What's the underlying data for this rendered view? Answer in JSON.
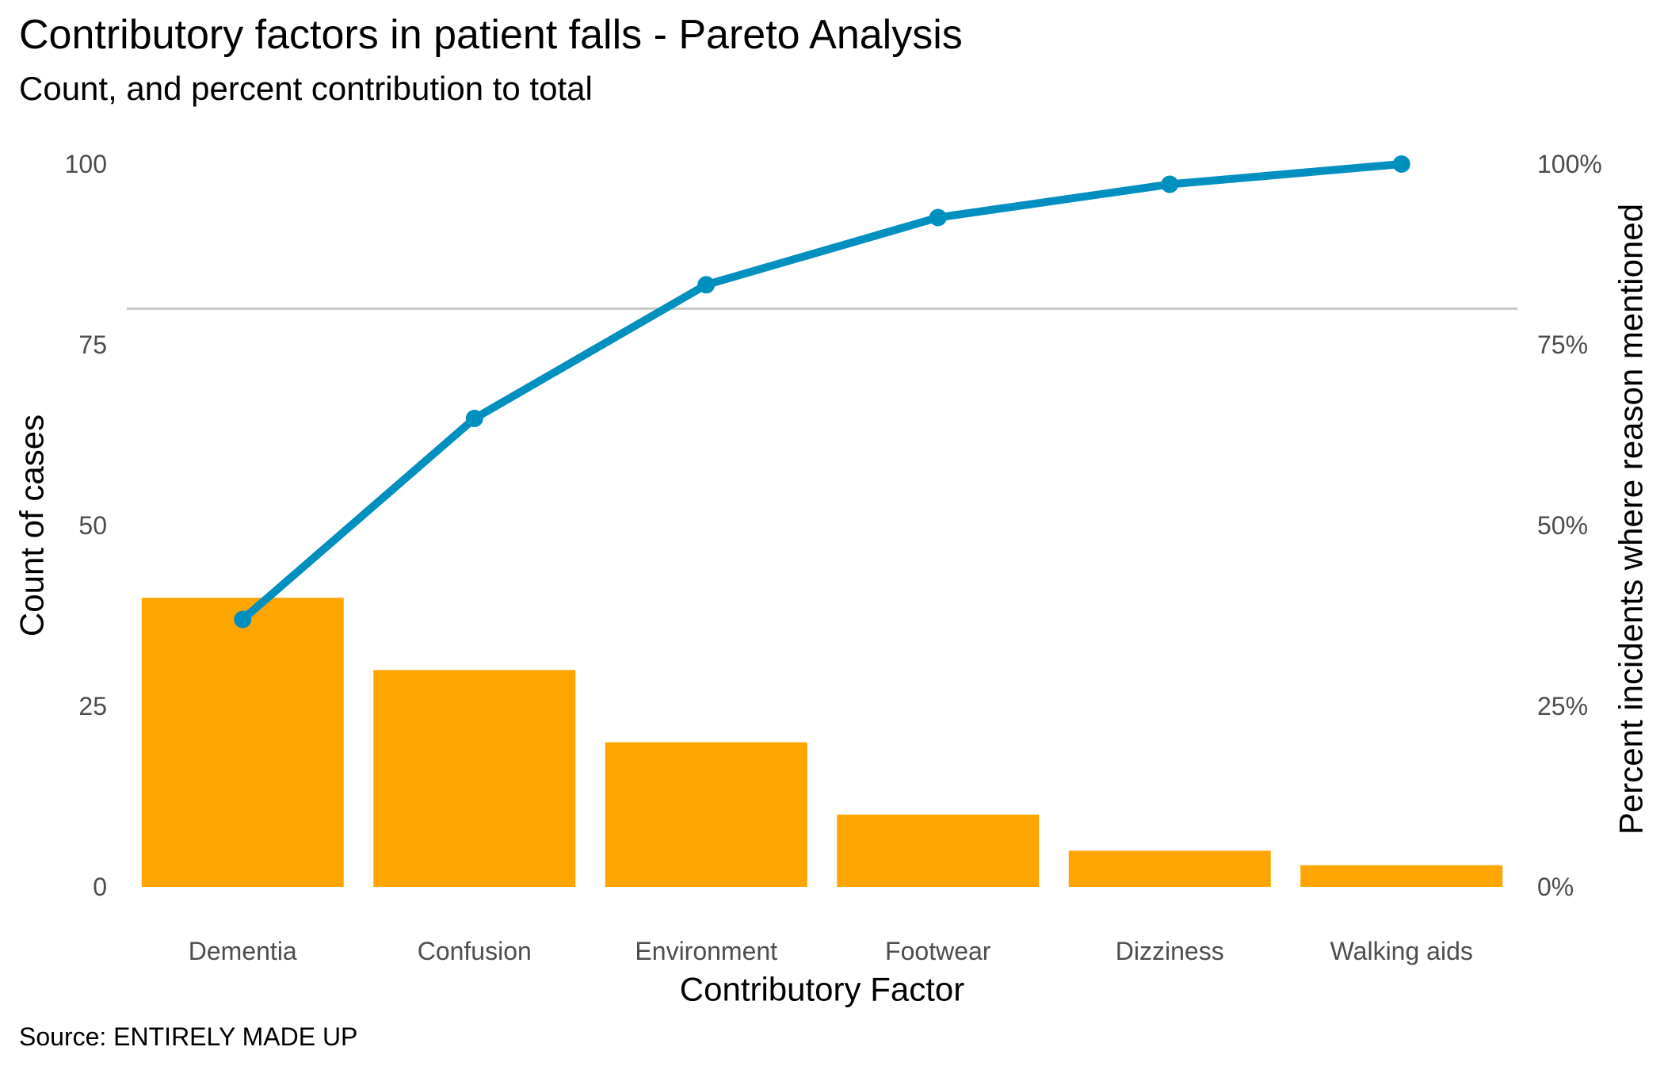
{
  "chart_data": {
    "type": "bar",
    "title": "Contributory factors in patient falls - Pareto Analysis",
    "subtitle": "Count, and percent contribution to total",
    "caption": "Source: ENTIRELY MADE UP",
    "xlabel": "Contributory Factor",
    "ylabel": "Count of cases",
    "y2label": "Percent incidents where reason mentioned",
    "categories": [
      "Dementia",
      "Confusion",
      "Environment",
      "Footwear",
      "Dizziness",
      "Walking aids"
    ],
    "series": [
      {
        "type": "bar",
        "axis": "left",
        "values": [
          40,
          30,
          20,
          10,
          5,
          3
        ]
      },
      {
        "type": "line",
        "axis": "right",
        "values": [
          37.0,
          64.8,
          83.3,
          92.6,
          97.2,
          100.0
        ]
      }
    ],
    "ylim": [
      0,
      100
    ],
    "y_ticks": [
      0,
      25,
      50,
      75,
      100
    ],
    "y_tick_labels": [
      "0",
      "25",
      "50",
      "75",
      "100"
    ],
    "y2lim": [
      0,
      100
    ],
    "y2_ticks": [
      0,
      25,
      50,
      75,
      100
    ],
    "y2_tick_labels": [
      "0%",
      "25%",
      "50%",
      "75%",
      "100%"
    ],
    "reference_line": {
      "y": 80
    },
    "grid": false,
    "legend": "none",
    "colors": {
      "bar": "#FFA500",
      "line": "#0090C0",
      "reference": "#C8C8C8"
    }
  }
}
